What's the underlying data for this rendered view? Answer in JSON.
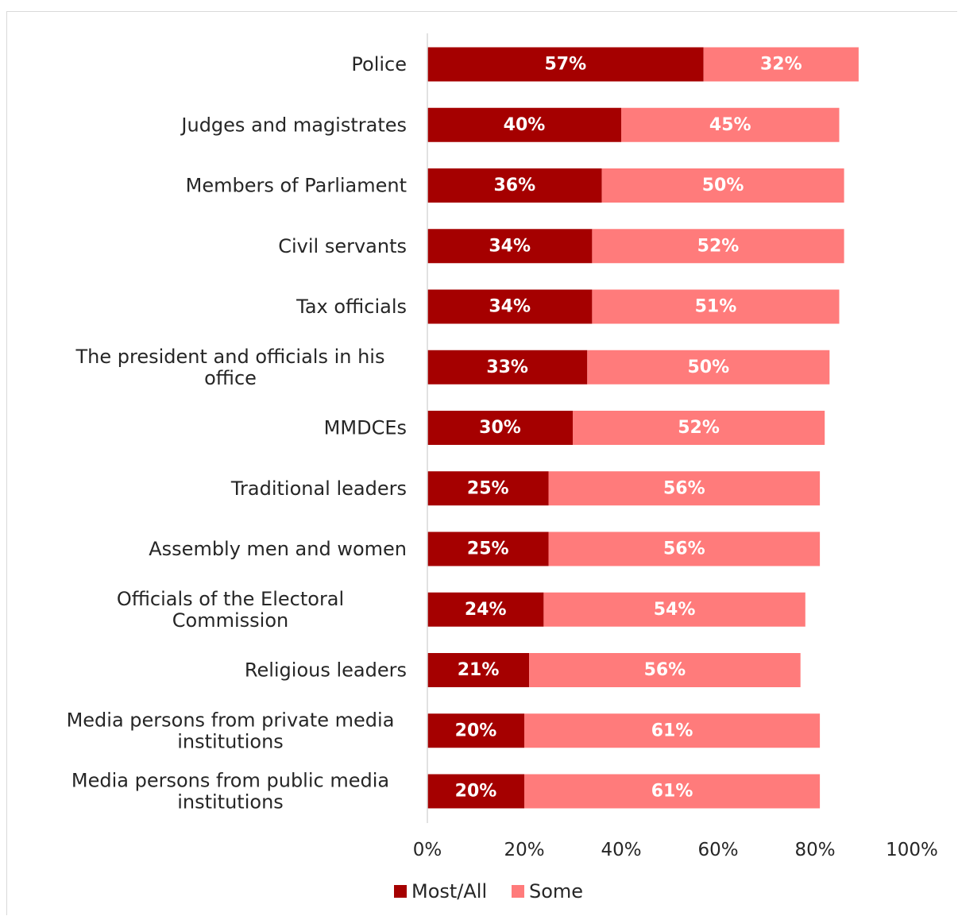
{
  "chart_data": {
    "type": "bar",
    "orientation": "horizontal",
    "stacked": true,
    "categories": [
      "Police",
      "Judges and magistrates",
      "Members of Parliament",
      "Civil servants",
      "Tax officials",
      "The president and officials in his office",
      "MMDCEs",
      "Traditional leaders",
      "Assembly men and women",
      "Officials of the Electoral Commission",
      "Religious leaders",
      "Media persons from private media institutions",
      "Media persons from public media institutions"
    ],
    "series": [
      {
        "name": "Most/All",
        "color": "#a50000",
        "values": [
          57,
          40,
          36,
          34,
          34,
          33,
          30,
          25,
          25,
          24,
          21,
          20,
          20
        ],
        "labels": [
          "57%",
          "40%",
          "36%",
          "34%",
          "34%",
          "33%",
          "30%",
          "25%",
          "25%",
          "24%",
          "21%",
          "20%",
          "20%"
        ]
      },
      {
        "name": "Some",
        "color": "#ff7b7b",
        "values": [
          32,
          45,
          50,
          52,
          51,
          50,
          52,
          56,
          56,
          54,
          56,
          61,
          61
        ],
        "labels": [
          "32%",
          "45%",
          "50%",
          "52%",
          "51%",
          "50%",
          "52%",
          "56%",
          "56%",
          "54%",
          "56%",
          "61%",
          "61%"
        ]
      }
    ],
    "xlim": [
      0,
      100
    ],
    "xticks": [
      "0%",
      "20%",
      "40%",
      "60%",
      "80%",
      "100%"
    ],
    "grid": false,
    "legend_position": "bottom"
  }
}
